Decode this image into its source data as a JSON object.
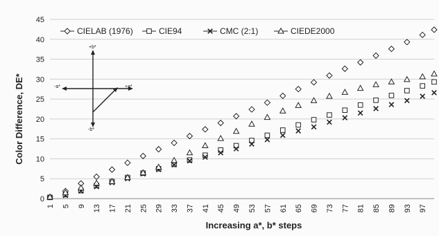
{
  "chart_data": {
    "type": "scatter",
    "xlabel": "Increasing a*, b* steps",
    "ylabel": "Color Difference, DE*",
    "ylim": [
      0,
      45
    ],
    "yticks": [
      0,
      5,
      10,
      15,
      20,
      25,
      30,
      35,
      40,
      45
    ],
    "xlim": [
      1,
      100
    ],
    "xticks": [
      1,
      5,
      9,
      13,
      17,
      21,
      25,
      29,
      33,
      37,
      41,
      45,
      49,
      53,
      57,
      61,
      65,
      69,
      73,
      77,
      81,
      85,
      89,
      93,
      97
    ],
    "grid": "horizontal",
    "legend_position": "top-left",
    "x": [
      1,
      5,
      9,
      13,
      17,
      21,
      25,
      29,
      33,
      37,
      41,
      45,
      49,
      53,
      57,
      61,
      65,
      69,
      73,
      77,
      81,
      85,
      89,
      93,
      97,
      100
    ],
    "series": [
      {
        "name": "CIELAB (1976)",
        "marker": "diamond",
        "values": [
          0.4,
          1.9,
          3.8,
          5.5,
          7.3,
          9.0,
          10.7,
          12.4,
          14.0,
          15.7,
          17.4,
          19.0,
          20.7,
          22.4,
          24.1,
          25.8,
          27.5,
          29.2,
          30.9,
          32.6,
          34.2,
          35.9,
          37.6,
          39.3,
          41.1,
          42.4
        ]
      },
      {
        "name": "CIE94",
        "marker": "square",
        "values": [
          0.3,
          1.0,
          2.0,
          3.3,
          4.3,
          5.3,
          6.4,
          7.5,
          8.6,
          9.7,
          10.9,
          12.2,
          13.3,
          14.6,
          15.9,
          17.2,
          18.5,
          19.8,
          21.0,
          22.2,
          23.5,
          24.7,
          25.9,
          27.1,
          28.3,
          29.3
        ]
      },
      {
        "name": "CMC (2:1)",
        "marker": "x",
        "values": [
          0.3,
          0.8,
          1.9,
          3.0,
          4.0,
          5.0,
          6.2,
          7.3,
          8.5,
          9.5,
          10.4,
          11.5,
          12.5,
          13.7,
          14.8,
          15.9,
          17.0,
          18.0,
          19.2,
          20.3,
          21.5,
          22.6,
          23.6,
          24.6,
          25.7,
          26.6
        ]
      },
      {
        "name": "CIEDE2000",
        "marker": "triangle",
        "values": [
          0.4,
          1.5,
          2.7,
          3.9,
          4.3,
          5.3,
          6.5,
          7.9,
          9.6,
          11.5,
          13.3,
          15.1,
          16.9,
          18.7,
          20.4,
          22.0,
          23.4,
          24.6,
          25.7,
          26.7,
          27.7,
          28.6,
          29.3,
          29.9,
          30.6,
          31.3
        ]
      }
    ],
    "inset_labels": {
      "plus_b": "+b*",
      "minus_b": "-b*",
      "plus_a": "+a*",
      "minus_a": "-a*"
    }
  }
}
